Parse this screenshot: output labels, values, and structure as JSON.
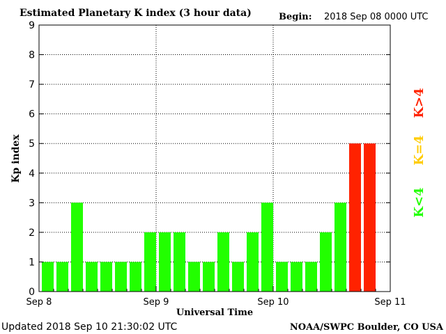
{
  "header": {
    "title": "Estimated Planetary K index (3 hour data)",
    "begin_label": "Begin:",
    "begin_value": "2018 Sep 08 0000 UTC"
  },
  "footer": {
    "updated": "Updated 2018 Sep 10 21:30:02 UTC",
    "source": "NOAA/SWPC Boulder, CO USA"
  },
  "legend": {
    "k_gt4": {
      "label": "K>4",
      "color": "#ff2200"
    },
    "k_eq4": {
      "label": "K=4",
      "color": "#ffcc00"
    },
    "k_lt4": {
      "label": "K<4",
      "color": "#22ff00"
    }
  },
  "chart_data": {
    "type": "bar",
    "title": "Estimated Planetary K index (3 hour data)",
    "xlabel": "Universal Time",
    "ylabel": "Kp index",
    "ylim": [
      0,
      9
    ],
    "yticks": [
      "0",
      "1",
      "2",
      "3",
      "4",
      "5",
      "6",
      "7",
      "8",
      "9"
    ],
    "xticks": [
      "Sep 8",
      "Sep 9",
      "Sep 10",
      "Sep 11"
    ],
    "grid": true,
    "slots_total": 24,
    "values": [
      1,
      1,
      3,
      1,
      1,
      1,
      1,
      2,
      2,
      2,
      1,
      1,
      2,
      1,
      2,
      3,
      1,
      1,
      1,
      2,
      3,
      5,
      5
    ],
    "colors": {
      "below4": "#22ff00",
      "equal4": "#ffcc00",
      "above4": "#ff2200"
    }
  }
}
